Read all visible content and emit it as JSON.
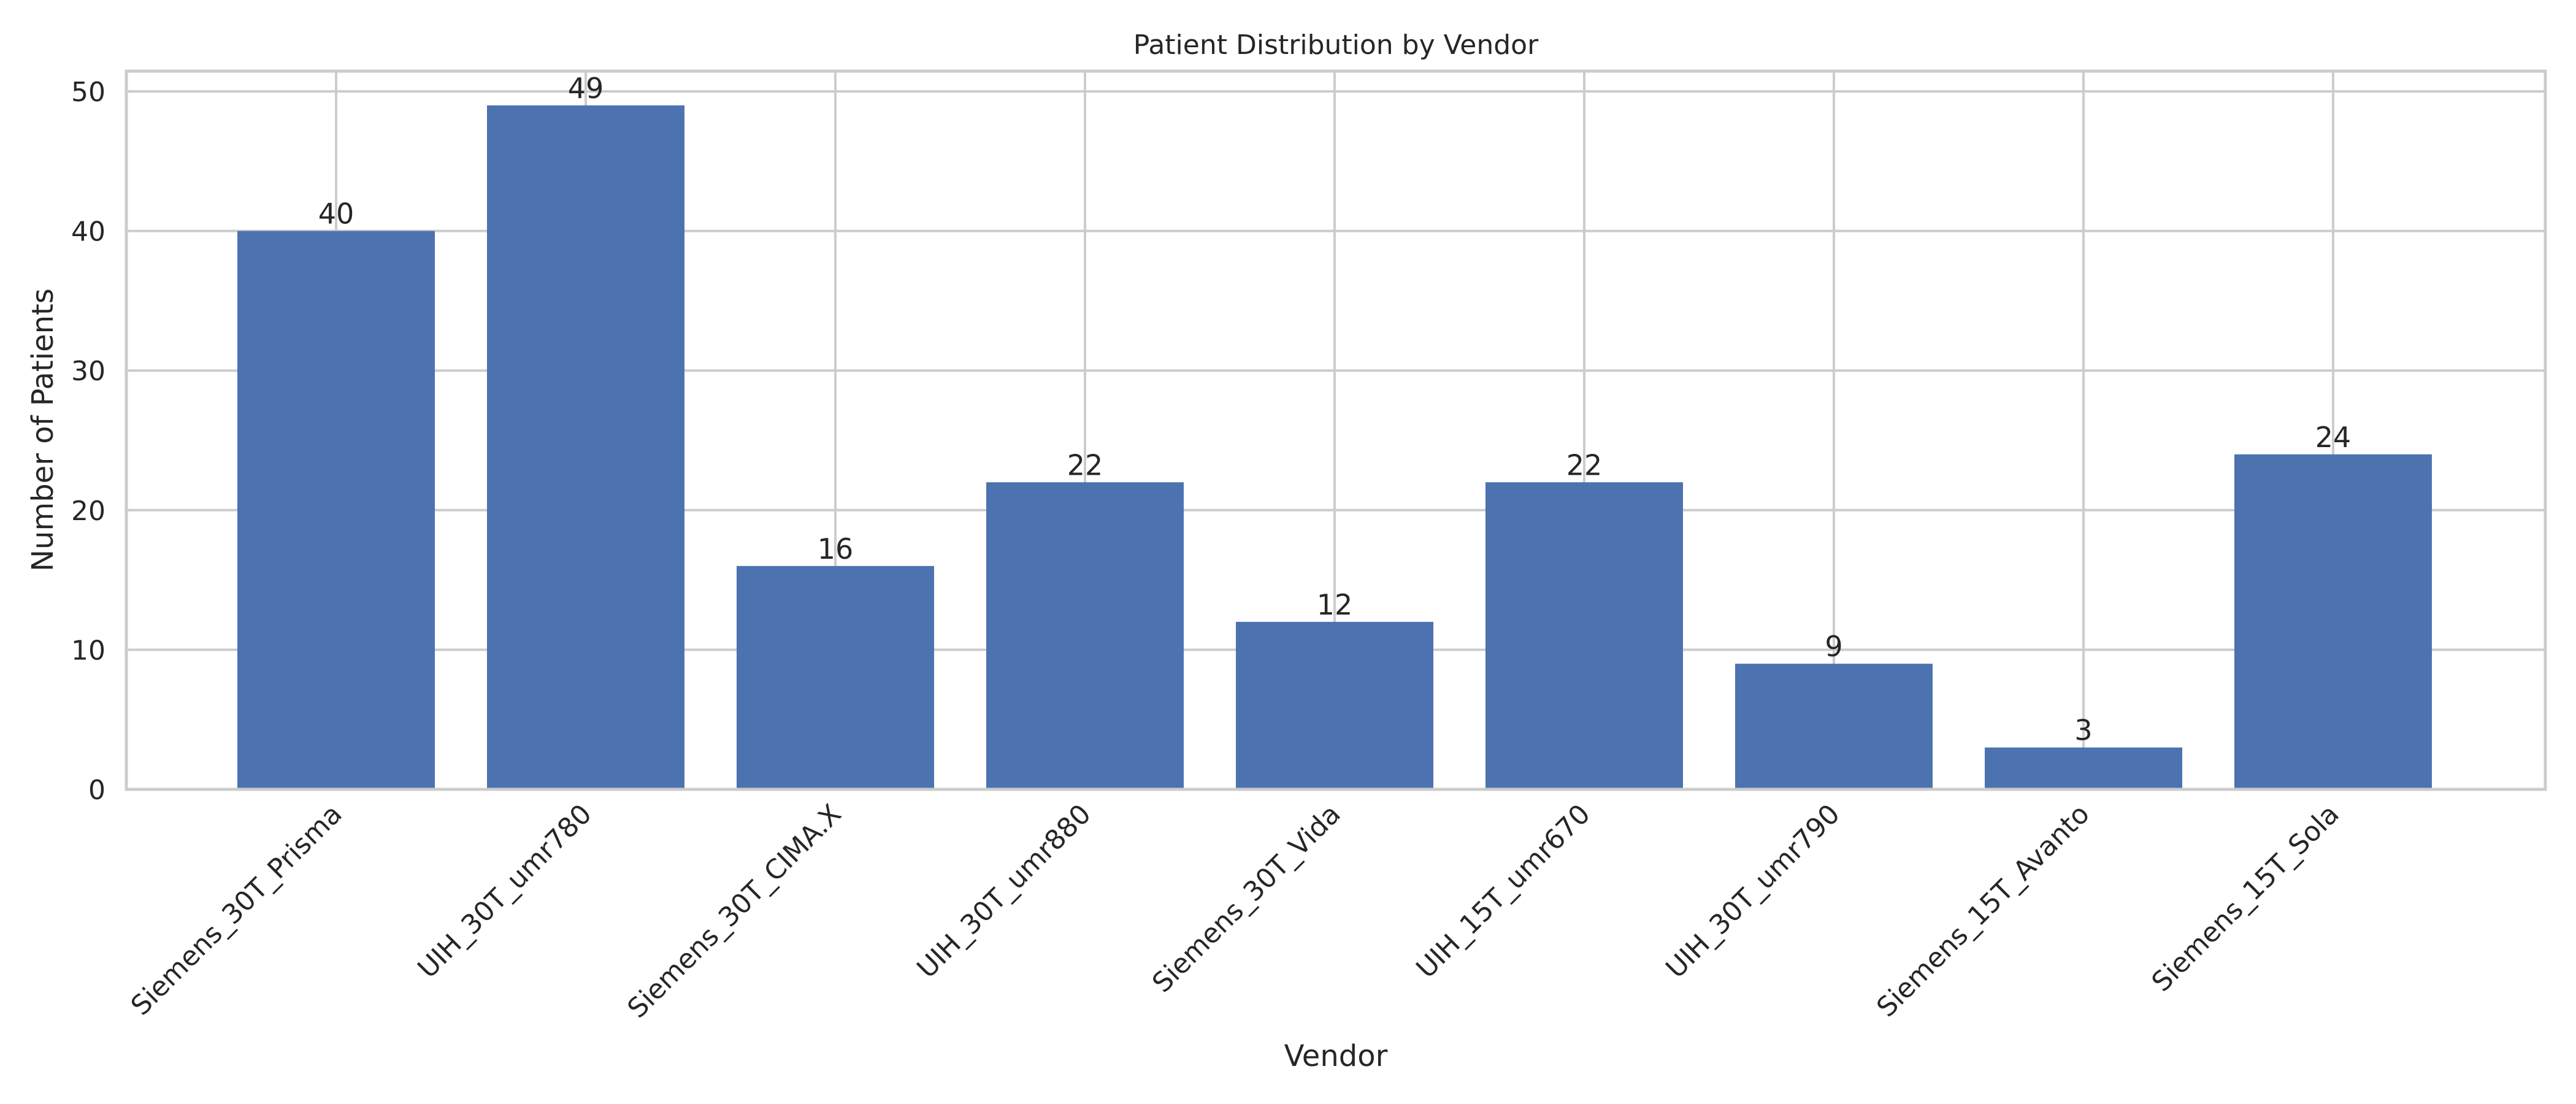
{
  "chart_data": {
    "type": "bar",
    "title": "Patient Distribution by Vendor",
    "xlabel": "Vendor",
    "ylabel": "Number of Patients",
    "categories": [
      "Siemens_30T_Prisma",
      "UIH_30T_umr780",
      "Siemens_30T_CIMA.X",
      "UIH_30T_umr880",
      "Siemens_30T_Vida",
      "UIH_15T_umr670",
      "UIH_30T_umr790",
      "Siemens_15T_Avanto",
      "Siemens_15T_Sola"
    ],
    "values": [
      40,
      49,
      16,
      22,
      12,
      22,
      9,
      3,
      24
    ],
    "data_labels": [
      "40",
      "49",
      "16",
      "22",
      "12",
      "22",
      "9",
      "3",
      "24"
    ],
    "ylim": [
      0,
      51.45
    ],
    "yticks": [
      0,
      10,
      20,
      30,
      40,
      50
    ],
    "ytick_labels": [
      "0",
      "10",
      "20",
      "30",
      "40",
      "50"
    ],
    "grid": true,
    "bar_color": "#4c72b0",
    "grid_color": "#cccccc"
  }
}
